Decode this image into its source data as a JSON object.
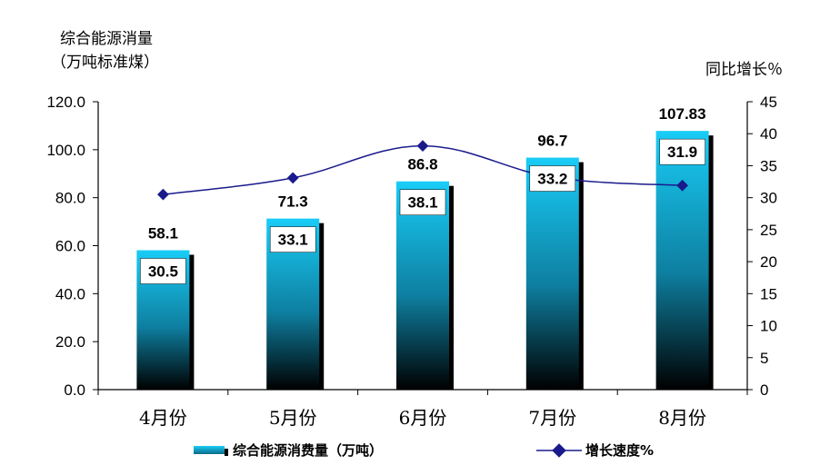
{
  "chart_data": {
    "type": "bar+line",
    "categories": [
      "4月份",
      "5月份",
      "6月份",
      "7月份",
      "8月份"
    ],
    "series": [
      {
        "name": "综合能源消费量（万吨）",
        "type": "bar",
        "axis": "left",
        "values": [
          58.1,
          71.3,
          86.8,
          96.7,
          107.83
        ],
        "labels": [
          "58.1",
          "71.3",
          "86.8",
          "96.7",
          "107.83"
        ]
      },
      {
        "name": "增长速度%",
        "type": "line",
        "axis": "right",
        "values": [
          30.5,
          33.1,
          38.1,
          33.2,
          31.9
        ],
        "labels": [
          "30.5",
          "33.1",
          "38.1",
          "33.2",
          "31.9"
        ]
      }
    ],
    "left_axis": {
      "title_line1": "综合能源消量",
      "title_line2": "（万吨标准煤）",
      "ylim": [
        0,
        120
      ],
      "ticks": [
        "0.0",
        "20.0",
        "40.0",
        "60.0",
        "80.0",
        "100.0",
        "120.0"
      ]
    },
    "right_axis": {
      "title": "同比增长％",
      "ylim": [
        0,
        45
      ],
      "ticks": [
        "0",
        "5",
        "10",
        "15",
        "20",
        "25",
        "30",
        "35",
        "40",
        "45"
      ]
    },
    "colors": {
      "bar_top": "#19cdf7",
      "bar_bottom": "#000000",
      "bar_shadow": "#000000",
      "line": "#1a1a8c",
      "axis": "#000000"
    },
    "legend_position": "bottom"
  }
}
